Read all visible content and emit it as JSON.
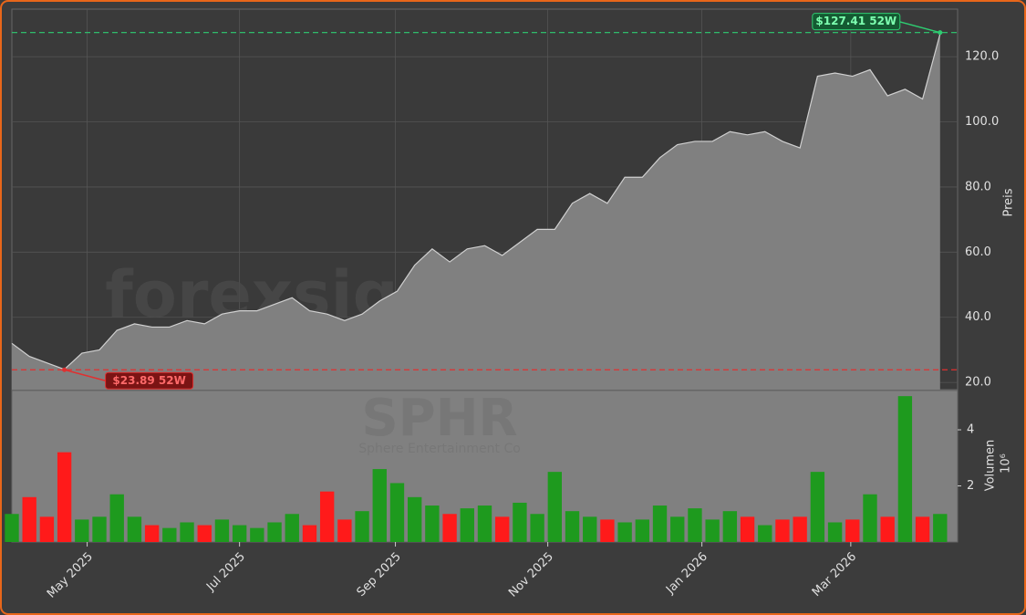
{
  "chart_data": [
    {
      "type": "area",
      "y_label": "Preis",
      "color": "#808080",
      "line_color": "#d0d0d0",
      "watermark": "forexsignale.trade",
      "xlim": [
        0,
        54
      ],
      "ylim": [
        17.8,
        134.6
      ],
      "yticks": [
        {
          "value": 20,
          "label": "20.0"
        },
        {
          "value": 40,
          "label": "40.0"
        },
        {
          "value": 60,
          "label": "60.0"
        },
        {
          "value": 80,
          "label": "80.0"
        },
        {
          "value": 100,
          "label": "100.0"
        },
        {
          "value": 120,
          "label": "120.0"
        }
      ],
      "grid": true,
      "series": [
        {
          "name": null,
          "values": [
            32,
            28,
            26,
            24,
            29,
            30,
            36,
            38,
            37,
            37,
            39,
            38,
            41,
            42,
            42,
            44,
            46,
            42,
            41,
            39,
            41,
            45,
            48,
            56,
            61,
            57,
            61,
            62,
            59,
            63,
            67,
            67,
            75,
            78,
            75,
            83,
            83,
            89,
            93,
            94,
            94,
            97,
            96,
            97,
            94,
            92,
            114,
            115,
            114,
            116,
            108,
            110,
            107,
            127
          ]
        }
      ],
      "high": {
        "value": 127.41,
        "label": "$127.41 52W",
        "color": "#2ecc71"
      },
      "low": {
        "value": 23.89,
        "label": "$23.89 52W",
        "color": "#e03030"
      }
    },
    {
      "type": "bar",
      "y_label": "Volumen",
      "multiplier": "10⁶",
      "title": "SPHR",
      "subtitle": "Sphere Entertainment Co",
      "up_color": "#1e9a1e",
      "down_color": "#ff1a1a",
      "xlim": [
        0,
        54
      ],
      "ylim": [
        0,
        5.4
      ],
      "yticks": [
        2,
        4
      ],
      "xticks": [
        {
          "value": 4.3,
          "label": "May 2025"
        },
        {
          "value": 13.0,
          "label": "Jul 2025"
        },
        {
          "value": 21.9,
          "label": "Sep 2025"
        },
        {
          "value": 30.6,
          "label": "Nov 2025"
        },
        {
          "value": 39.4,
          "label": "Jan 2026"
        },
        {
          "value": 47.9,
          "label": "Mar 2026"
        }
      ],
      "series": [
        {
          "name": null,
          "values": [
            1.0,
            1.6,
            0.9,
            3.2,
            0.8,
            0.9,
            1.7,
            0.9,
            0.6,
            0.5,
            0.7,
            0.6,
            0.8,
            0.6,
            0.5,
            0.7,
            1.0,
            0.6,
            1.8,
            0.8,
            1.1,
            2.6,
            2.1,
            1.6,
            1.3,
            1.0,
            1.2,
            1.3,
            0.9,
            1.4,
            1.0,
            2.5,
            1.1,
            0.9,
            0.8,
            0.7,
            0.8,
            1.3,
            0.9,
            1.2,
            0.8,
            1.1,
            0.9,
            0.6,
            0.8,
            0.9,
            2.5,
            0.7,
            0.8,
            1.7,
            0.9,
            5.2,
            0.9,
            1.0
          ]
        }
      ]
    }
  ]
}
